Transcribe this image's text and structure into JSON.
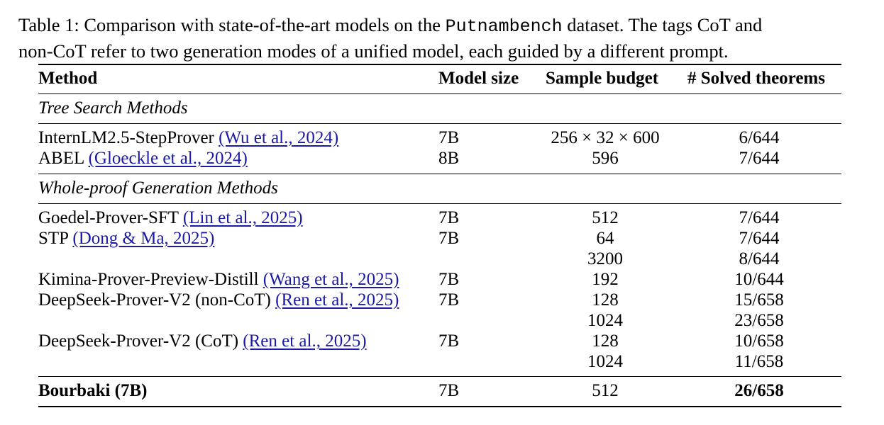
{
  "caption": {
    "line1_prefix": "Table 1: Comparison with state-of-the-art models on the ",
    "dataset": "Putnambench",
    "line1_suffix": " dataset. The tags CoT and",
    "line2": "non-CoT refer to two generation modes of a unified model, each guided by a different prompt."
  },
  "headers": {
    "method": "Method",
    "model_size": "Model size",
    "sample_budget": "Sample budget",
    "solved": "# Solved theorems"
  },
  "sections": {
    "tree": "Tree Search Methods",
    "whole": "Whole-proof Generation Methods"
  },
  "rows": [
    {
      "method": "InternLM2.5-StepProver",
      "cite": "(Wu et al., 2024)",
      "size": "7B",
      "budget": "256 × 32 × 600",
      "solved": "6/644"
    },
    {
      "method": "ABEL",
      "cite": "(Gloeckle et al., 2024)",
      "size": "8B",
      "budget": "596",
      "solved": "7/644"
    },
    {
      "method": "Goedel-Prover-SFT",
      "cite": "(Lin et al., 2025)",
      "size": "7B",
      "budget": "512",
      "solved": "7/644"
    },
    {
      "method": "STP",
      "cite": "(Dong & Ma, 2025)",
      "size": "7B",
      "budget": "64",
      "solved": "7/644"
    },
    {
      "method": "",
      "cite": "",
      "size": "",
      "budget": "3200",
      "solved": "8/644"
    },
    {
      "method": "Kimina-Prover-Preview-Distill",
      "cite": "(Wang et al., 2025)",
      "size": "7B",
      "budget": "192",
      "solved": "10/644"
    },
    {
      "method": "DeepSeek-Prover-V2 (non-CoT)",
      "cite": "(Ren et al., 2025)",
      "size": "7B",
      "budget": "128",
      "solved": "15/658"
    },
    {
      "method": "",
      "cite": "",
      "size": "",
      "budget": "1024",
      "solved": "23/658"
    },
    {
      "method": "DeepSeek-Prover-V2 (CoT)",
      "cite": "(Ren et al., 2025)",
      "size": "7B",
      "budget": "128",
      "solved": "10/658"
    },
    {
      "method": "",
      "cite": "",
      "size": "",
      "budget": "1024",
      "solved": "11/658"
    }
  ],
  "final_row": {
    "method": "Bourbaki (7B)",
    "size": "7B",
    "budget": "512",
    "solved": "26/658"
  }
}
